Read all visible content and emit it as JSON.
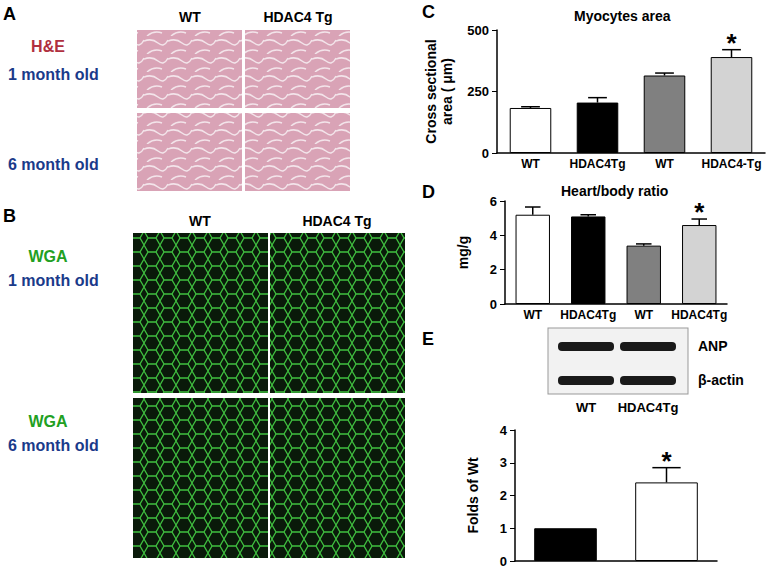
{
  "chart_data": [
    {
      "type": "bar",
      "panel": "C",
      "title": "Myocytes area",
      "y_label": "Cross sectional\narea ( μm)",
      "categories": [
        "WT",
        "HDAC4Tg",
        "WT",
        "HDAC4-Tg"
      ],
      "values": [
        183,
        205,
        315,
        390
      ],
      "errors": [
        5,
        20,
        10,
        30
      ],
      "annotations": [
        null,
        null,
        null,
        "*"
      ],
      "colors": [
        "#ffffff",
        "#000000",
        "#808080",
        "#d3d3d3"
      ],
      "ylim": [
        0,
        500
      ],
      "yticks": [
        0,
        250,
        500
      ],
      "grid": false
    },
    {
      "type": "bar",
      "panel": "D",
      "title": "Heart/body ratio",
      "y_label": "mg/g",
      "categories": [
        "WT",
        "HDAC4Tg",
        "WT",
        "HDAC4Tg"
      ],
      "values": [
        5.2,
        5.1,
        3.4,
        4.6
      ],
      "errors": [
        0.45,
        0.1,
        0.1,
        0.35
      ],
      "annotations": [
        null,
        null,
        null,
        "*"
      ],
      "colors": [
        "#ffffff",
        "#000000",
        "#808080",
        "#d3d3d3"
      ],
      "ylim": [
        0,
        6
      ],
      "yticks": [
        0,
        2,
        4,
        6
      ],
      "grid": false
    },
    {
      "type": "bar",
      "panel": "E",
      "y_label": "Folds of Wt",
      "categories": [
        "WT",
        "HDAC4Tg"
      ],
      "values": [
        1,
        2.4
      ],
      "errors": [
        0,
        0.45
      ],
      "annotations": [
        null,
        "*"
      ],
      "colors": [
        "#000000",
        "#ffffff"
      ],
      "ylim": [
        0,
        4
      ],
      "yticks": [
        0,
        1,
        2,
        3,
        4
      ],
      "grid": false,
      "tick_labels": "y",
      "blot": {
        "bands": [
          "ANP",
          "β-actin"
        ]
      }
    }
  ],
  "panels": [
    {
      "panel": "A",
      "stain": "H&E",
      "columns": [
        "WT",
        "HDAC4 Tg"
      ],
      "rows": [
        "1 month old",
        "6 month old"
      ]
    },
    {
      "panel": "B",
      "stain": "WGA",
      "columns": [
        "WT",
        "HDAC4 Tg"
      ],
      "rows": [
        "1 month old",
        "6 month old"
      ]
    }
  ]
}
